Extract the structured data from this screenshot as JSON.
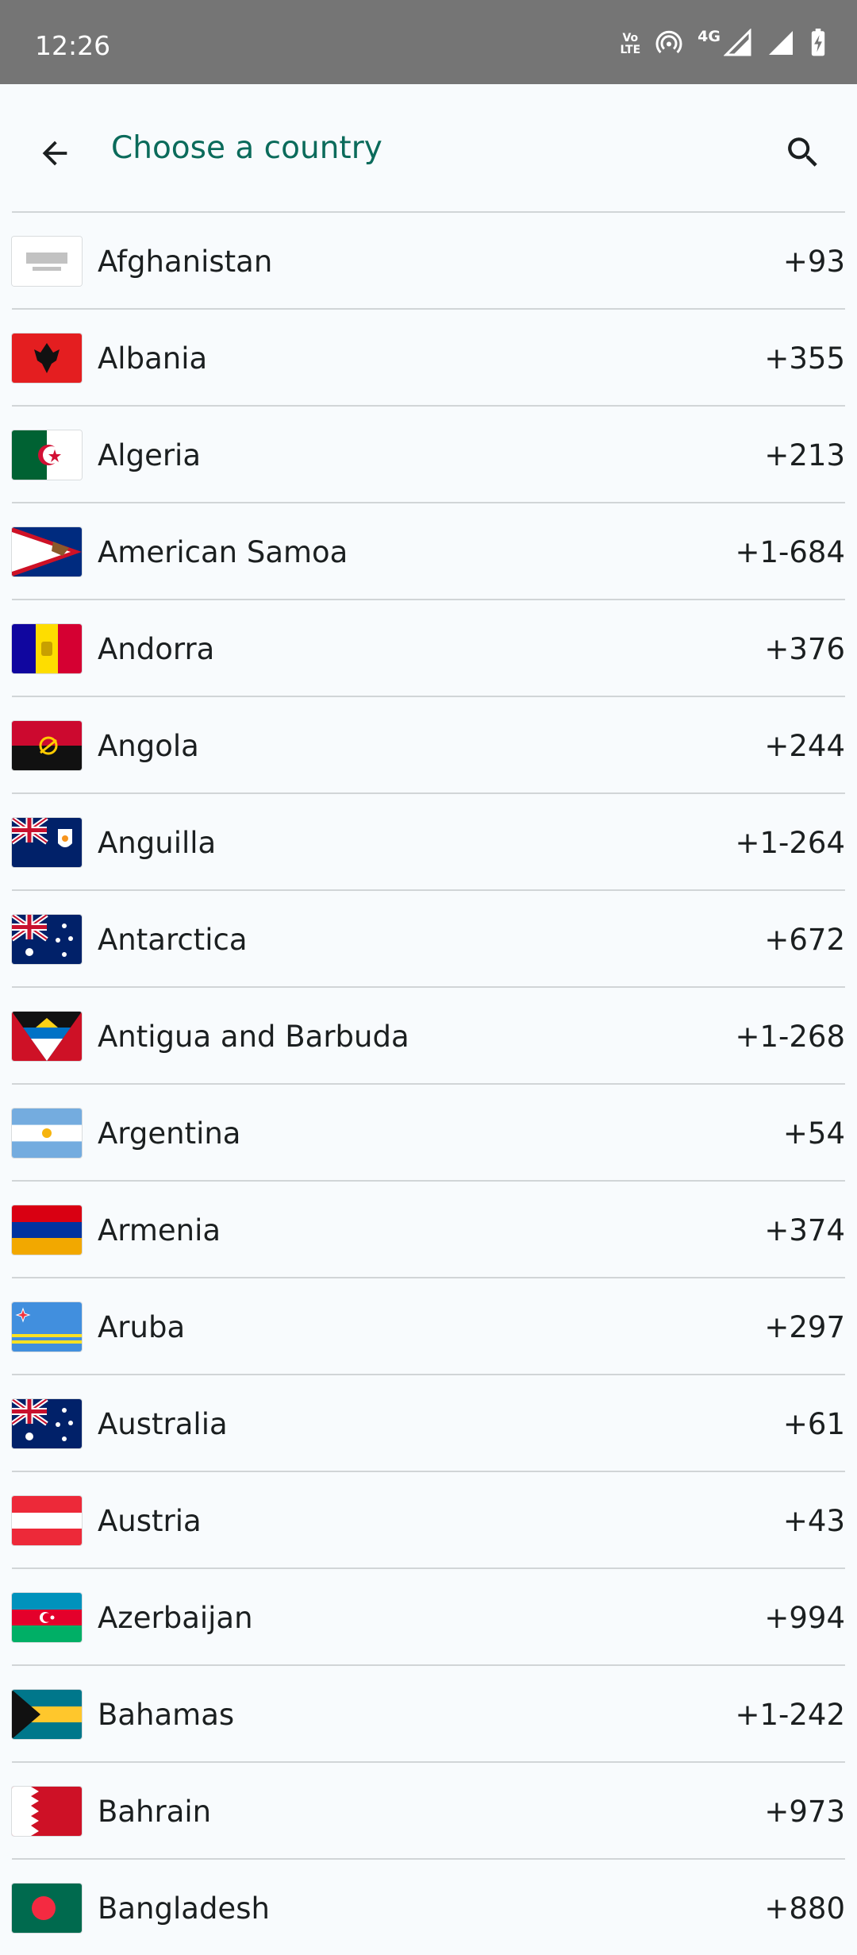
{
  "status_bar": {
    "time": "12:26",
    "volte_top": "Vo",
    "volte_bottom": "LTE",
    "network_type": "4G"
  },
  "header": {
    "title": "Choose a country",
    "back_icon": "arrow-left-icon",
    "search_icon": "search-icon"
  },
  "colors": {
    "accent": "#0b6b5b",
    "status_bar_bg": "#757575",
    "background": "#f8fbfd",
    "divider": "#d1d5d7"
  },
  "countries": [
    {
      "name": "Afghanistan",
      "code": "+93"
    },
    {
      "name": "Albania",
      "code": "+355"
    },
    {
      "name": "Algeria",
      "code": "+213"
    },
    {
      "name": "American Samoa",
      "code": "+1-684"
    },
    {
      "name": "Andorra",
      "code": "+376"
    },
    {
      "name": "Angola",
      "code": "+244"
    },
    {
      "name": "Anguilla",
      "code": "+1-264"
    },
    {
      "name": "Antarctica",
      "code": "+672"
    },
    {
      "name": "Antigua and Barbuda",
      "code": "+1-268"
    },
    {
      "name": "Argentina",
      "code": "+54"
    },
    {
      "name": "Armenia",
      "code": "+374"
    },
    {
      "name": "Aruba",
      "code": "+297"
    },
    {
      "name": "Australia",
      "code": "+61"
    },
    {
      "name": "Austria",
      "code": "+43"
    },
    {
      "name": "Azerbaijan",
      "code": "+994"
    },
    {
      "name": "Bahamas",
      "code": "+1-242"
    },
    {
      "name": "Bahrain",
      "code": "+973"
    },
    {
      "name": "Bangladesh",
      "code": "+880"
    }
  ]
}
